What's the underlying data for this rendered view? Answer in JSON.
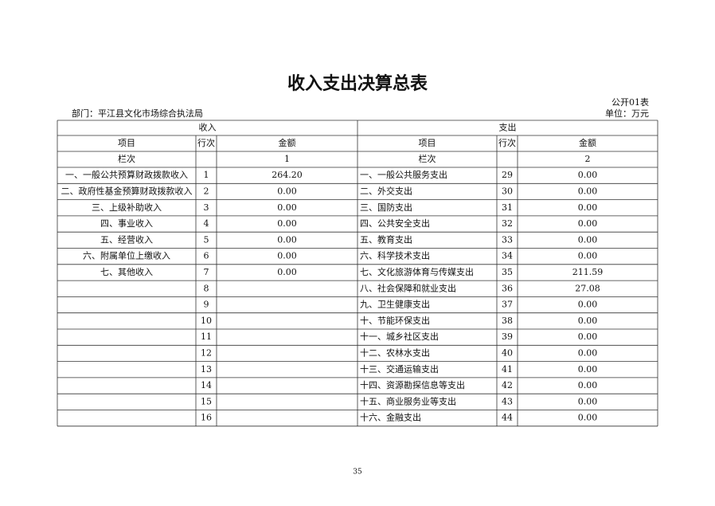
{
  "title": "收入支出决算总表",
  "form_no": "公开01表",
  "department": "部门：平江县文化市场综合执法局",
  "unit": "单位：万元",
  "table": {
    "sections": [
      "收入",
      "支出"
    ],
    "headers": [
      "项目",
      "行次",
      "金额",
      "项目",
      "行次",
      "金额"
    ],
    "column_index_row": [
      "栏次",
      null,
      "1",
      "栏次",
      null,
      "2"
    ],
    "rows": [
      [
        "一、一般公共预算财政拨款收入",
        "1",
        "264.20",
        "一、一般公共服务支出",
        "29",
        "0.00"
      ],
      [
        "二、政府性基金预算财政拨款收入",
        "2",
        "0.00",
        "二、外交支出",
        "30",
        "0.00"
      ],
      [
        "三、上级补助收入",
        "3",
        "0.00",
        "三、国防支出",
        "31",
        "0.00"
      ],
      [
        "四、事业收入",
        "4",
        "0.00",
        "四、公共安全支出",
        "32",
        "0.00"
      ],
      [
        "五、经营收入",
        "5",
        "0.00",
        "五、教育支出",
        "33",
        "0.00"
      ],
      [
        "六、附属单位上缴收入",
        "6",
        "0.00",
        "六、科学技术支出",
        "34",
        "0.00"
      ],
      [
        "七、其他收入",
        "7",
        "0.00",
        "七、文化旅游体育与传媒支出",
        "35",
        "211.59"
      ],
      [
        null,
        "8",
        null,
        "八、社会保障和就业支出",
        "36",
        "27.08"
      ],
      [
        null,
        "9",
        null,
        "九、卫生健康支出",
        "37",
        "0.00"
      ],
      [
        null,
        "10",
        null,
        "十、节能环保支出",
        "38",
        "0.00"
      ],
      [
        null,
        "11",
        null,
        "十一、城乡社区支出",
        "39",
        "0.00"
      ],
      [
        null,
        "12",
        null,
        "十二、农林水支出",
        "40",
        "0.00"
      ],
      [
        null,
        "13",
        null,
        "十三、交通运输支出",
        "41",
        "0.00"
      ],
      [
        null,
        "14",
        null,
        "十四、资源勘探信息等支出",
        "42",
        "0.00"
      ],
      [
        null,
        "15",
        null,
        "十五、商业服务业等支出",
        "43",
        "0.00"
      ],
      [
        null,
        "16",
        null,
        "十六、金融支出",
        "44",
        "0.00"
      ]
    ]
  },
  "page_number": "35"
}
